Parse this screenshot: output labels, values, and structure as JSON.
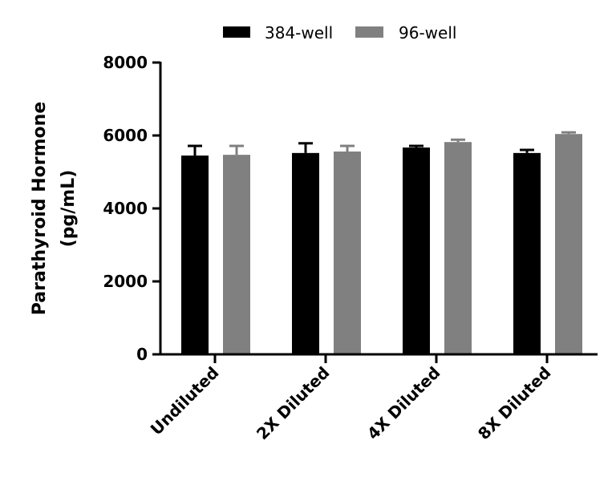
{
  "chart_data": {
    "type": "bar",
    "title": "",
    "xlabel": "",
    "ylabel": [
      "Parathyroid Hormone",
      "(pg/mL)"
    ],
    "ylim": [
      0,
      8000
    ],
    "yticks": [
      "0",
      "2000",
      "4000",
      "6000",
      "8000"
    ],
    "ytick_values": [
      0,
      2000,
      4000,
      6000,
      8000
    ],
    "grid": false,
    "legend_position": "top",
    "categories": [
      "Undiluted",
      "2X Diluted",
      "4X Diluted",
      "8X Diluted"
    ],
    "series": [
      {
        "name": "384-well",
        "color": "#000000",
        "values": [
          5450,
          5520,
          5670,
          5520
        ],
        "errors": [
          265,
          265,
          45,
          85
        ]
      },
      {
        "name": "96-well",
        "color": "#808080",
        "values": [
          5470,
          5560,
          5820,
          6040
        ],
        "errors": [
          245,
          155,
          65,
          45
        ]
      }
    ]
  }
}
